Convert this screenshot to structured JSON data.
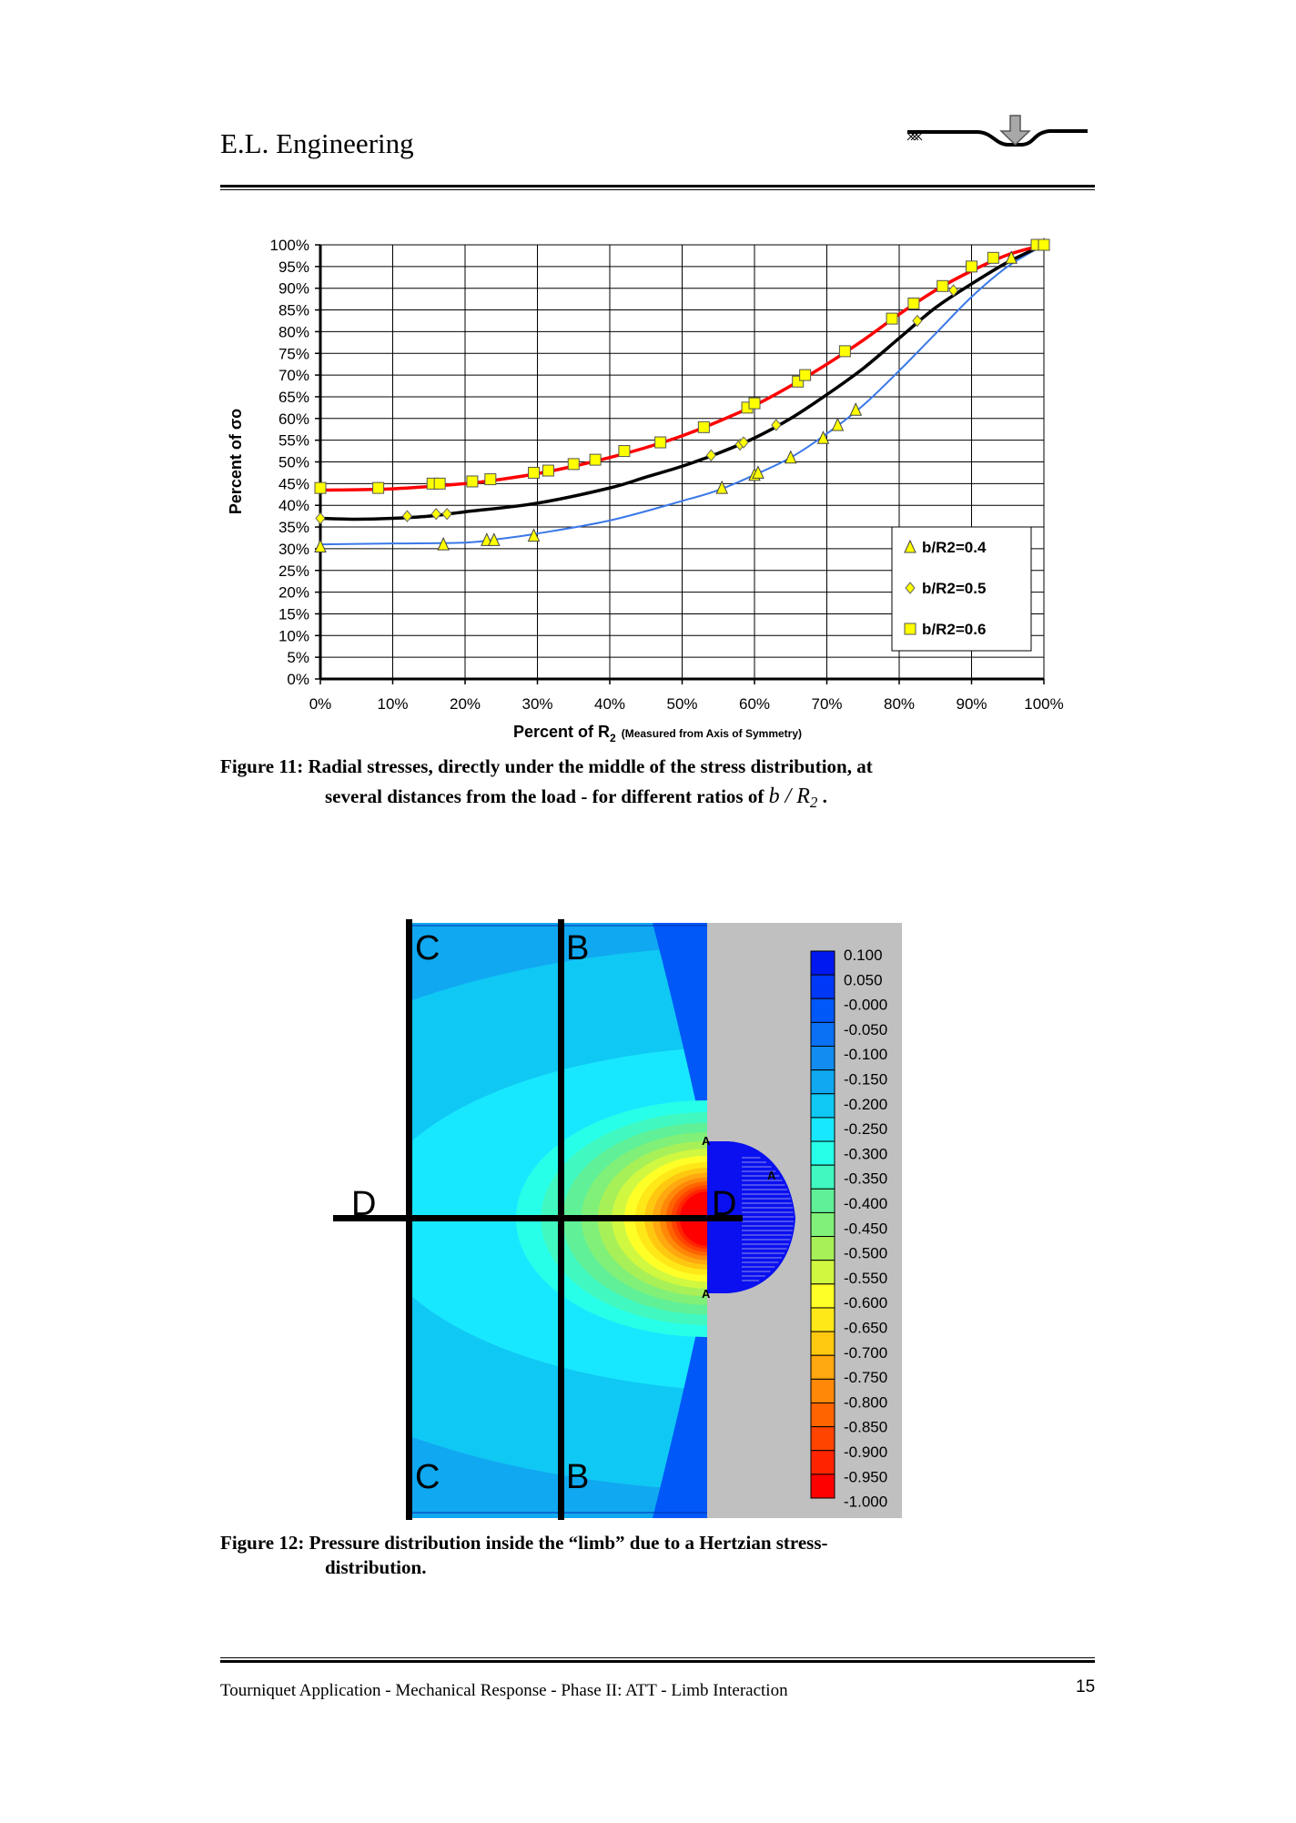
{
  "header": {
    "title": "E.L. Engineering",
    "logo": "indentation-arrow-logo"
  },
  "chart_data": {
    "type": "scatter",
    "title": "",
    "xlabel": "Percent of R",
    "xlabel_sub": "2",
    "xlabel_note": "(Measured from Axis of Symmetry)",
    "ylabel": "Percent of σo",
    "xlim": [
      0,
      100
    ],
    "ylim": [
      0,
      100
    ],
    "grid": true,
    "legend_position": "bottom-right",
    "x_ticks": [
      "0%",
      "10%",
      "20%",
      "30%",
      "40%",
      "50%",
      "60%",
      "70%",
      "80%",
      "90%",
      "100%"
    ],
    "y_ticks": [
      "0%",
      "5%",
      "10%",
      "15%",
      "20%",
      "25%",
      "30%",
      "35%",
      "40%",
      "45%",
      "50%",
      "55%",
      "60%",
      "65%",
      "70%",
      "75%",
      "80%",
      "85%",
      "90%",
      "95%",
      "100%"
    ],
    "series": [
      {
        "name": "b/R2=0.4",
        "marker": "triangle",
        "line_color": "#3a78e8",
        "points": [
          [
            0,
            30.5
          ],
          [
            17,
            31
          ],
          [
            23,
            32
          ],
          [
            24,
            32
          ],
          [
            29.5,
            33
          ],
          [
            55.5,
            44
          ],
          [
            60,
            47
          ],
          [
            60.5,
            47.5
          ],
          [
            65,
            51
          ],
          [
            69.5,
            55.5
          ],
          [
            71.5,
            58.5
          ],
          [
            74,
            62
          ],
          [
            95.5,
            97
          ],
          [
            100,
            100
          ]
        ],
        "curve": [
          [
            0,
            31
          ],
          [
            10,
            31.2
          ],
          [
            20,
            31.4
          ],
          [
            25,
            32.3
          ],
          [
            30,
            33.5
          ],
          [
            40,
            36.5
          ],
          [
            50,
            41
          ],
          [
            55,
            43.5
          ],
          [
            60,
            47
          ],
          [
            65,
            51
          ],
          [
            70,
            56.5
          ],
          [
            75,
            63
          ],
          [
            80,
            71
          ],
          [
            85,
            79.5
          ],
          [
            90,
            88
          ],
          [
            95,
            95
          ],
          [
            100,
            100
          ]
        ]
      },
      {
        "name": "b/R2=0.5",
        "marker": "diamond",
        "line_color": "#000000",
        "points": [
          [
            0,
            37
          ],
          [
            12,
            37.5
          ],
          [
            16,
            38
          ],
          [
            17.5,
            38
          ],
          [
            54,
            51.5
          ],
          [
            58,
            54
          ],
          [
            58.5,
            54.5
          ],
          [
            63,
            58.5
          ],
          [
            82.5,
            82.5
          ],
          [
            87.5,
            89.5
          ],
          [
            100,
            100
          ]
        ],
        "curve": [
          [
            0,
            37
          ],
          [
            5,
            36.8
          ],
          [
            10,
            37
          ],
          [
            15,
            37.5
          ],
          [
            20,
            38.5
          ],
          [
            30,
            40.5
          ],
          [
            40,
            44
          ],
          [
            45,
            46.5
          ],
          [
            50,
            49
          ],
          [
            55,
            52
          ],
          [
            60,
            55.5
          ],
          [
            65,
            60
          ],
          [
            70,
            65.5
          ],
          [
            75,
            71.5
          ],
          [
            80,
            78.5
          ],
          [
            85,
            85.5
          ],
          [
            90,
            91
          ],
          [
            95,
            96
          ],
          [
            100,
            100
          ]
        ]
      },
      {
        "name": "b/R2=0.6",
        "marker": "square",
        "line_color": "#ff0000",
        "points": [
          [
            0,
            44
          ],
          [
            8,
            44
          ],
          [
            15.5,
            45
          ],
          [
            16.5,
            45
          ],
          [
            21,
            45.5
          ],
          [
            23.5,
            46
          ],
          [
            29.5,
            47.5
          ],
          [
            31.5,
            48
          ],
          [
            35,
            49.5
          ],
          [
            38,
            50.5
          ],
          [
            42,
            52.5
          ],
          [
            47,
            54.5
          ],
          [
            53,
            58
          ],
          [
            59,
            62.5
          ],
          [
            60,
            63.5
          ],
          [
            66,
            68.5
          ],
          [
            67,
            70
          ],
          [
            72.5,
            75.5
          ],
          [
            79,
            83
          ],
          [
            82,
            86.5
          ],
          [
            86,
            90.5
          ],
          [
            90,
            95
          ],
          [
            93,
            97
          ],
          [
            99,
            100
          ],
          [
            100,
            100
          ]
        ],
        "curve": [
          [
            0,
            43.5
          ],
          [
            10,
            43.8
          ],
          [
            20,
            45
          ],
          [
            25,
            46
          ],
          [
            30,
            47.3
          ],
          [
            35,
            49
          ],
          [
            40,
            51
          ],
          [
            45,
            53.3
          ],
          [
            50,
            56
          ],
          [
            55,
            59.3
          ],
          [
            60,
            63
          ],
          [
            65,
            67.5
          ],
          [
            70,
            72.5
          ],
          [
            75,
            78
          ],
          [
            80,
            84
          ],
          [
            85,
            89.5
          ],
          [
            90,
            94
          ],
          [
            95,
            97.7
          ],
          [
            100,
            100
          ]
        ]
      }
    ]
  },
  "figure11": {
    "caption_line1": "Figure 11: Radial stresses, directly under the middle of the stress distribution, at",
    "caption_line2": "several distances from the load - for different ratios of ",
    "math": "b / R",
    "math_sub": "2",
    "caption_end": " ."
  },
  "figure12": {
    "section_labels": {
      "c_top": "C",
      "b_top": "B",
      "c_bottom": "C",
      "b_bottom": "B",
      "d_left": "D",
      "d_right": "D"
    },
    "load_markers": [
      "A",
      "A",
      "A"
    ],
    "colorbar": [
      {
        "label": "0.100",
        "color": "#0018f0"
      },
      {
        "label": "0.050",
        "color": "#0038f8"
      },
      {
        "label": "-0.000",
        "color": "#0058f8"
      },
      {
        "label": "-0.050",
        "color": "#0a70f4"
      },
      {
        "label": "-0.100",
        "color": "#128cf0"
      },
      {
        "label": "-0.150",
        "color": "#10a8f0"
      },
      {
        "label": "-0.200",
        "color": "#10c8f4"
      },
      {
        "label": "-0.250",
        "color": "#18e8ff"
      },
      {
        "label": "-0.300",
        "color": "#28ffe8"
      },
      {
        "label": "-0.350",
        "color": "#40f8c0"
      },
      {
        "label": "-0.400",
        "color": "#60f098"
      },
      {
        "label": "-0.450",
        "color": "#80f078"
      },
      {
        "label": "-0.500",
        "color": "#a8f058"
      },
      {
        "label": "-0.550",
        "color": "#d0f840"
      },
      {
        "label": "-0.600",
        "color": "#ffff28"
      },
      {
        "label": "-0.650",
        "color": "#ffe818"
      },
      {
        "label": "-0.700",
        "color": "#ffc810"
      },
      {
        "label": "-0.750",
        "color": "#ffa810"
      },
      {
        "label": "-0.800",
        "color": "#ff8808"
      },
      {
        "label": "-0.850",
        "color": "#ff6400"
      },
      {
        "label": "-0.900",
        "color": "#ff4400"
      },
      {
        "label": "-0.950",
        "color": "#ff2400"
      },
      {
        "label": "-1.000",
        "color": "#ff0000"
      }
    ],
    "caption_line1": "Figure 12: Pressure distribution inside the “limb” due to a Hertzian stress-",
    "caption_line2": "distribution."
  },
  "footer": {
    "text": "Tourniquet Application - Mechanical Response - Phase II: ATT - Limb Interaction",
    "page_number": "15"
  }
}
